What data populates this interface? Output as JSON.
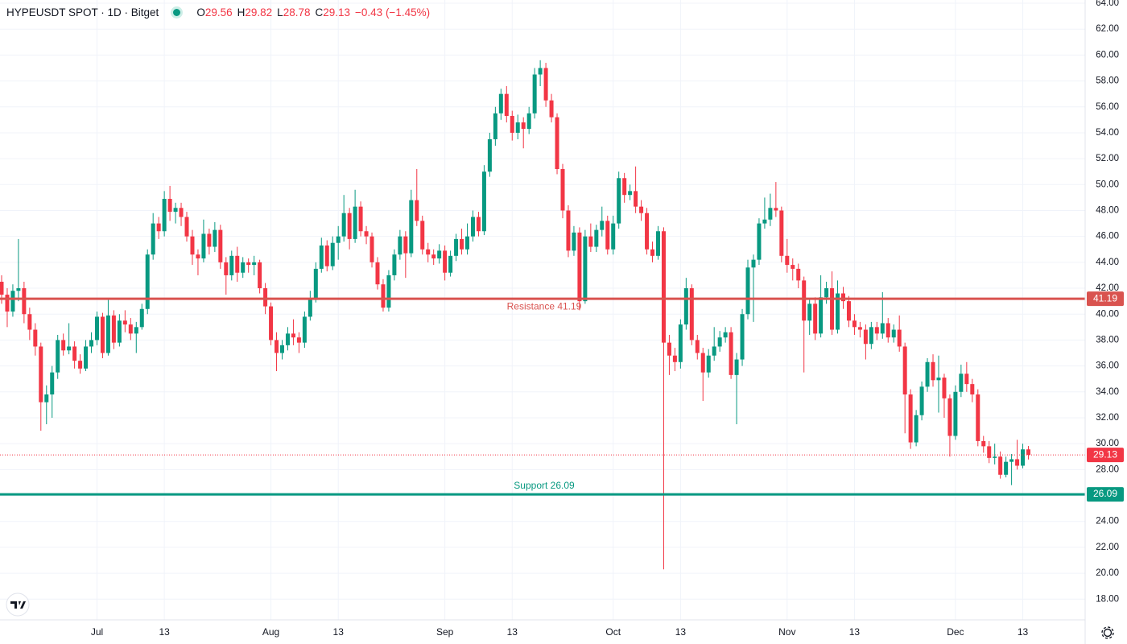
{
  "chart_data": {
    "type": "candlestick",
    "legend": {
      "symbol": "HYPEUSDT SPOT · 1D · Bitget",
      "open_key": "O",
      "high_key": "H",
      "low_key": "L",
      "close_key": "C",
      "change": "−0.43 (−1.45%)"
    },
    "categories": [
      null,
      null,
      null,
      null,
      null,
      null,
      null,
      null,
      null,
      null,
      null,
      null,
      null,
      null,
      null,
      null,
      null,
      "Jul",
      null,
      null,
      null,
      null,
      null,
      null,
      null,
      null,
      null,
      null,
      null,
      "13",
      null,
      null,
      null,
      null,
      null,
      null,
      null,
      null,
      null,
      null,
      null,
      null,
      null,
      null,
      null,
      null,
      null,
      null,
      "Aug",
      null,
      null,
      null,
      null,
      null,
      null,
      null,
      null,
      null,
      null,
      null,
      "13",
      null,
      null,
      null,
      null,
      null,
      null,
      null,
      null,
      null,
      null,
      null,
      null,
      null,
      null,
      null,
      null,
      null,
      null,
      "Sep",
      null,
      null,
      null,
      null,
      null,
      null,
      null,
      null,
      null,
      null,
      null,
      "13",
      null,
      null,
      null,
      null,
      null,
      null,
      null,
      null,
      null,
      null,
      null,
      null,
      null,
      null,
      null,
      null,
      null,
      "Oct",
      null,
      null,
      null,
      null,
      null,
      null,
      null,
      null,
      null,
      null,
      null,
      "13",
      null,
      null,
      null,
      null,
      null,
      null,
      null,
      null,
      null,
      null,
      null,
      null,
      null,
      null,
      null,
      null,
      null,
      null,
      "Nov",
      null,
      null,
      null,
      null,
      null,
      null,
      null,
      null,
      null,
      null,
      null,
      "13",
      null,
      null,
      null,
      null,
      null,
      null,
      null,
      null,
      null,
      null,
      null,
      null,
      null,
      null,
      null,
      null,
      null,
      "Dec",
      null,
      null,
      null,
      null,
      null,
      null,
      null,
      null,
      null,
      null,
      null,
      "13",
      null
    ],
    "open": [
      42.5,
      41.5,
      40.2,
      41.8,
      42.0,
      40.0,
      38.8,
      37.5,
      33.2,
      33.8,
      35.5,
      38.0,
      37.2,
      37.5,
      36.4,
      35.8,
      37.5,
      38.0,
      39.8,
      37.0,
      39.9,
      37.8,
      39.5,
      39.2,
      38.5,
      39.0,
      40.4,
      44.6,
      47.0,
      46.4,
      48.9,
      47.9,
      48.2,
      47.5,
      46.0,
      44.6,
      44.3,
      46.2,
      45.2,
      46.5,
      44.0,
      43.0,
      44.5,
      43.2,
      44.0,
      43.8,
      44.0,
      42.0,
      40.6,
      38.0,
      37.0,
      37.6,
      38.5,
      38.2,
      37.8,
      39.8,
      41.2,
      43.5,
      45.3,
      43.7,
      45.5,
      46.0,
      47.8,
      45.8,
      48.3,
      46.4,
      46.0,
      44.0,
      42.3,
      40.5,
      43.0,
      44.6,
      46.0,
      44.7,
      48.8,
      47.2,
      45.0,
      44.6,
      44.3,
      44.9,
      43.2,
      44.5,
      45.8,
      45.0,
      46.0,
      47.5,
      46.4,
      51.0,
      53.5,
      55.5,
      57.0,
      55.3,
      54.0,
      54.8,
      54.3,
      55.5,
      58.5,
      59.0,
      56.5,
      55.2,
      51.2,
      48.0,
      44.9,
      46.3,
      41.0,
      46.0,
      45.2,
      46.5,
      47.2,
      45.0,
      47.0,
      50.5,
      49.2,
      49.5,
      48.3,
      47.8,
      45.0,
      44.5,
      46.4,
      37.8,
      36.8,
      36.3,
      39.2,
      42.0,
      38.0,
      37.0,
      35.5,
      36.8,
      37.5,
      38.2,
      38.6,
      35.3,
      36.5,
      40.0,
      43.6,
      44.2,
      47.0,
      47.3,
      48.2,
      48.0,
      44.5,
      43.8,
      43.5,
      42.6,
      39.5,
      40.8,
      38.5,
      41.3,
      42.0,
      38.8,
      41.6,
      41.0,
      39.5,
      39.0,
      38.8,
      37.7,
      39.0,
      38.5,
      39.3,
      38.2,
      38.8,
      37.5,
      33.8,
      30.1,
      32.2,
      34.4,
      36.3,
      34.9,
      35.1,
      33.5,
      30.6,
      34.0,
      35.4,
      34.6,
      33.8,
      30.2,
      29.8,
      28.9,
      29.0,
      27.6,
      28.6,
      28.8,
      28.3,
      29.56
    ],
    "high": [
      43.0,
      42.0,
      42.3,
      45.8,
      42.5,
      40.5,
      39.3,
      37.8,
      34.5,
      36.0,
      38.4,
      38.5,
      39.3,
      37.9,
      36.9,
      38.0,
      38.6,
      40.2,
      40.1,
      41.2,
      40.3,
      40.0,
      40.3,
      39.7,
      39.4,
      40.8,
      45.0,
      47.8,
      47.5,
      49.5,
      49.9,
      48.6,
      48.6,
      47.9,
      46.5,
      45.0,
      47.3,
      46.6,
      47.1,
      46.9,
      44.4,
      44.9,
      45.2,
      44.4,
      44.3,
      44.5,
      44.2,
      42.4,
      40.9,
      38.6,
      38.0,
      39.0,
      39.6,
      38.6,
      40.2,
      41.8,
      44.0,
      45.9,
      45.7,
      46.0,
      46.8,
      49.2,
      48.2,
      49.6,
      48.7,
      46.8,
      46.3,
      44.4,
      42.7,
      43.4,
      45.0,
      46.5,
      46.4,
      49.6,
      51.2,
      47.6,
      45.5,
      45.0,
      45.4,
      45.3,
      44.9,
      46.2,
      46.6,
      47.0,
      48.0,
      47.9,
      51.5,
      54.0,
      56.0,
      57.4,
      57.6,
      55.7,
      55.4,
      55.2,
      56.0,
      59.0,
      59.6,
      59.4,
      57.0,
      55.5,
      51.6,
      48.4,
      46.8,
      46.7,
      46.5,
      47.0,
      46.9,
      48.3,
      47.6,
      47.6,
      51.0,
      50.9,
      50.0,
      51.4,
      48.8,
      48.2,
      45.6,
      46.8,
      46.7,
      38.4,
      37.4,
      39.6,
      42.8,
      42.3,
      38.4,
      37.4,
      37.3,
      39.0,
      38.7,
      39.0,
      39.0,
      37.0,
      40.4,
      44.2,
      44.6,
      47.4,
      49.0,
      49.3,
      50.2,
      48.3,
      45.8,
      44.3,
      43.9,
      42.9,
      41.2,
      41.3,
      43.0,
      42.5,
      43.3,
      42.6,
      42.1,
      41.4,
      40.0,
      39.4,
      39.2,
      39.4,
      39.4,
      41.7,
      39.7,
      39.2,
      39.9,
      37.8,
      34.2,
      32.6,
      34.8,
      36.6,
      36.9,
      36.8,
      35.4,
      33.8,
      34.5,
      36.1,
      36.3,
      35.0,
      34.2,
      30.6,
      30.2,
      30.0,
      29.4,
      29.0,
      29.2,
      30.3,
      30.0,
      29.82
    ],
    "low": [
      40.8,
      39.0,
      39.8,
      41.0,
      39.3,
      38.0,
      36.8,
      31.0,
      31.5,
      32.0,
      35.0,
      36.8,
      36.9,
      35.8,
      35.4,
      35.6,
      37.0,
      37.6,
      36.6,
      36.8,
      37.3,
      37.5,
      38.6,
      38.0,
      37.0,
      38.8,
      40.0,
      44.2,
      45.8,
      46.0,
      47.2,
      47.0,
      46.8,
      45.6,
      43.8,
      43.0,
      44.0,
      44.6,
      44.8,
      43.5,
      41.5,
      42.6,
      42.5,
      42.8,
      43.2,
      43.0,
      41.6,
      40.0,
      37.6,
      35.6,
      36.5,
      37.2,
      37.6,
      37.0,
      37.4,
      39.5,
      40.9,
      43.2,
      43.3,
      43.4,
      44.2,
      45.6,
      45.0,
      45.5,
      46.0,
      45.4,
      43.6,
      41.9,
      40.2,
      40.2,
      42.6,
      44.2,
      42.8,
      44.4,
      46.8,
      44.6,
      44.0,
      43.8,
      43.9,
      42.6,
      42.9,
      44.1,
      44.6,
      44.6,
      45.6,
      46.0,
      46.1,
      50.6,
      53.0,
      55.0,
      54.8,
      53.4,
      53.5,
      52.8,
      53.9,
      55.1,
      57.6,
      56.0,
      54.8,
      50.8,
      47.4,
      44.4,
      44.5,
      40.3,
      40.8,
      44.8,
      44.8,
      46.0,
      44.6,
      44.6,
      46.6,
      48.6,
      48.8,
      47.8,
      47.2,
      44.6,
      44.0,
      44.2,
      20.3,
      35.3,
      35.6,
      35.8,
      38.8,
      37.6,
      36.5,
      33.3,
      35.1,
      36.4,
      37.1,
      37.8,
      35.0,
      31.5,
      36.0,
      39.6,
      39.4,
      43.8,
      46.6,
      46.8,
      47.5,
      44.0,
      43.2,
      42.6,
      42.0,
      35.5,
      38.4,
      38.0,
      38.2,
      40.8,
      38.4,
      38.5,
      40.4,
      39.0,
      38.4,
      38.2,
      36.5,
      37.3,
      38.0,
      38.1,
      37.8,
      37.8,
      37.1,
      30.8,
      29.6,
      29.8,
      31.8,
      34.0,
      34.4,
      32.4,
      32.0,
      29.0,
      30.3,
      33.6,
      34.0,
      33.2,
      29.8,
      29.3,
      28.5,
      28.4,
      27.3,
      27.4,
      26.8,
      28.0,
      28.1,
      28.78
    ],
    "close": [
      41.5,
      40.2,
      41.8,
      42.0,
      40.0,
      38.8,
      37.5,
      33.2,
      33.8,
      35.5,
      38.0,
      37.2,
      37.5,
      36.4,
      35.8,
      37.5,
      38.0,
      39.8,
      37.0,
      39.9,
      37.8,
      39.5,
      39.2,
      38.5,
      39.0,
      40.4,
      44.6,
      47.0,
      46.4,
      48.9,
      47.9,
      48.2,
      47.5,
      46.0,
      44.6,
      44.3,
      46.2,
      45.2,
      46.5,
      44.0,
      43.0,
      44.5,
      43.2,
      44.0,
      43.8,
      44.0,
      42.0,
      40.6,
      38.0,
      37.0,
      37.6,
      38.5,
      38.2,
      37.8,
      39.8,
      41.2,
      43.5,
      45.3,
      43.7,
      45.5,
      46.0,
      47.8,
      45.8,
      48.3,
      46.4,
      46.0,
      44.0,
      42.3,
      40.5,
      43.0,
      44.6,
      46.0,
      44.7,
      48.8,
      47.2,
      45.0,
      44.6,
      44.3,
      44.9,
      43.2,
      44.5,
      45.8,
      45.0,
      46.0,
      47.5,
      46.4,
      51.0,
      53.5,
      55.5,
      57.0,
      55.3,
      54.0,
      54.8,
      54.3,
      55.5,
      58.5,
      59.0,
      56.5,
      55.2,
      51.2,
      48.0,
      44.9,
      46.3,
      41.0,
      46.0,
      45.2,
      46.5,
      47.2,
      45.0,
      47.0,
      50.5,
      49.2,
      49.5,
      48.3,
      47.8,
      45.0,
      44.5,
      46.4,
      37.8,
      36.8,
      36.3,
      39.2,
      42.0,
      38.0,
      37.0,
      35.5,
      36.8,
      37.5,
      38.2,
      38.6,
      35.3,
      36.5,
      40.0,
      43.6,
      44.2,
      47.0,
      47.3,
      48.2,
      48.0,
      44.5,
      43.8,
      43.5,
      42.6,
      39.5,
      40.8,
      38.5,
      41.3,
      42.0,
      38.8,
      41.6,
      41.0,
      39.5,
      39.0,
      38.8,
      37.7,
      39.0,
      38.5,
      39.3,
      38.2,
      38.8,
      37.5,
      33.8,
      30.1,
      32.2,
      34.4,
      36.3,
      34.9,
      35.1,
      33.5,
      30.6,
      34.0,
      35.4,
      34.6,
      33.8,
      30.2,
      29.8,
      28.9,
      29.0,
      27.6,
      28.6,
      28.8,
      28.3,
      29.56,
      29.13
    ],
    "up_color": "#089981",
    "down_color": "#f23645",
    "ylim": [
      16.4,
      64.25
    ],
    "yticks": [
      {
        "value": 18,
        "label": "18.00"
      },
      {
        "value": 20,
        "label": "20.00"
      },
      {
        "value": 22,
        "label": "22.00"
      },
      {
        "value": 24,
        "label": "24.00"
      },
      {
        "value": 26,
        "label": "26.00"
      },
      {
        "value": 28,
        "label": "28.00"
      },
      {
        "value": 30,
        "label": "30.00"
      },
      {
        "value": 32,
        "label": "32.00"
      },
      {
        "value": 34,
        "label": "34.00"
      },
      {
        "value": 36,
        "label": "36.00"
      },
      {
        "value": 38,
        "label": "38.00"
      },
      {
        "value": 40,
        "label": "40.00"
      },
      {
        "value": 42,
        "label": "42.00"
      },
      {
        "value": 44,
        "label": "44.00"
      },
      {
        "value": 46,
        "label": "46.00"
      },
      {
        "value": 48,
        "label": "48.00"
      },
      {
        "value": 50,
        "label": "50.00"
      },
      {
        "value": 52,
        "label": "52.00"
      },
      {
        "value": 54,
        "label": "54.00"
      },
      {
        "value": 56,
        "label": "56.00"
      },
      {
        "value": 58,
        "label": "58.00"
      },
      {
        "value": 60,
        "label": "60.00"
      },
      {
        "value": 62,
        "label": "62.00"
      },
      {
        "value": 64,
        "label": "64.00"
      }
    ],
    "grid": true,
    "lines": [
      {
        "label": "Resistance 41.19",
        "value": 41.19,
        "color": "#d9534f"
      },
      {
        "label": "Support 26.09",
        "value": 26.09,
        "color": "#089981"
      }
    ]
  }
}
